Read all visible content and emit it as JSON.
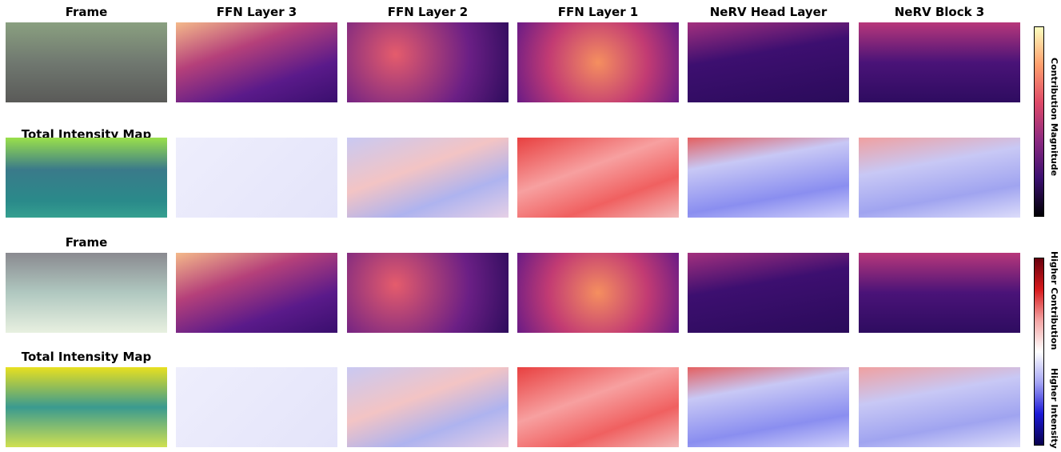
{
  "headers": [
    "Frame",
    "FFN Layer 3",
    "FFN Layer 2",
    "FFN Layer 1",
    "NeRV Head Layer",
    "NeRV Block 3"
  ],
  "row_labels": [
    "Total Intensity Map",
    "Frame",
    "Total Intensity Map"
  ],
  "colorbars": [
    {
      "label": "Contribution Magnitude"
    },
    {
      "labels": [
        "Higher Contribution",
        "Higher Intensity"
      ]
    }
  ]
}
